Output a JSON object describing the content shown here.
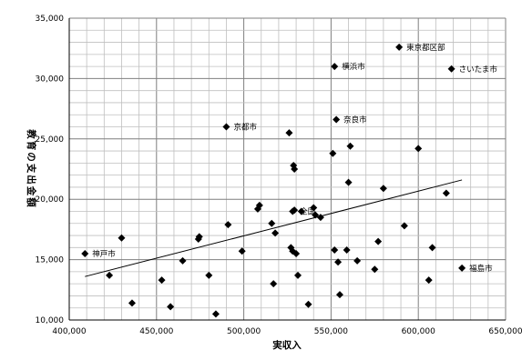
{
  "chart_data": {
    "type": "scatter",
    "title": "",
    "xlabel": "実収入",
    "ylabel": "教育の支出金額",
    "xlim": [
      400000,
      650000
    ],
    "ylim": [
      10000,
      35000
    ],
    "grid": true,
    "legend": "none",
    "x_ticks": [
      "400,000",
      "450,000",
      "500,000",
      "550,000",
      "600,000",
      "650,000"
    ],
    "y_ticks": [
      "10,000",
      "15,000",
      "20,000",
      "25,000",
      "30,000",
      "35,000"
    ],
    "points": [
      {
        "x": 409000,
        "y": 15500,
        "label": "神戸市"
      },
      {
        "x": 423000,
        "y": 13700
      },
      {
        "x": 430000,
        "y": 16800
      },
      {
        "x": 436000,
        "y": 11400
      },
      {
        "x": 453000,
        "y": 13300
      },
      {
        "x": 458000,
        "y": 11100
      },
      {
        "x": 465000,
        "y": 14900
      },
      {
        "x": 474000,
        "y": 16700
      },
      {
        "x": 474500,
        "y": 16900
      },
      {
        "x": 480000,
        "y": 13700
      },
      {
        "x": 484000,
        "y": 10500
      },
      {
        "x": 491000,
        "y": 17900
      },
      {
        "x": 490000,
        "y": 26000,
        "label": "京都市"
      },
      {
        "x": 499000,
        "y": 15700
      },
      {
        "x": 508000,
        "y": 19200
      },
      {
        "x": 509000,
        "y": 19500
      },
      {
        "x": 516000,
        "y": 18000
      },
      {
        "x": 517000,
        "y": 13000
      },
      {
        "x": 518000,
        "y": 17200
      },
      {
        "x": 526000,
        "y": 25500
      },
      {
        "x": 527000,
        "y": 16000
      },
      {
        "x": 528000,
        "y": 15700
      },
      {
        "x": 528500,
        "y": 22800
      },
      {
        "x": 529000,
        "y": 22500
      },
      {
        "x": 528000,
        "y": 19000,
        "label": "全国"
      },
      {
        "x": 529000,
        "y": 19100
      },
      {
        "x": 530000,
        "y": 15500
      },
      {
        "x": 531000,
        "y": 13700
      },
      {
        "x": 533000,
        "y": 19000
      },
      {
        "x": 537000,
        "y": 11300
      },
      {
        "x": 540000,
        "y": 19300
      },
      {
        "x": 541000,
        "y": 18700
      },
      {
        "x": 544000,
        "y": 18500
      },
      {
        "x": 551000,
        "y": 23800
      },
      {
        "x": 552000,
        "y": 15800
      },
      {
        "x": 552000,
        "y": 31000,
        "label": "横浜市"
      },
      {
        "x": 553000,
        "y": 26600,
        "label": "奈良市"
      },
      {
        "x": 554000,
        "y": 14800
      },
      {
        "x": 555000,
        "y": 12100
      },
      {
        "x": 559000,
        "y": 15800
      },
      {
        "x": 560000,
        "y": 21400
      },
      {
        "x": 561000,
        "y": 24400
      },
      {
        "x": 565000,
        "y": 14900
      },
      {
        "x": 575000,
        "y": 14200
      },
      {
        "x": 577000,
        "y": 16500
      },
      {
        "x": 580000,
        "y": 20900
      },
      {
        "x": 589000,
        "y": 32600,
        "label": "東京都区部"
      },
      {
        "x": 592000,
        "y": 17800
      },
      {
        "x": 600000,
        "y": 24200
      },
      {
        "x": 606000,
        "y": 13300
      },
      {
        "x": 608000,
        "y": 16000
      },
      {
        "x": 616000,
        "y": 20500
      },
      {
        "x": 619000,
        "y": 30800,
        "label": "さいたま市"
      },
      {
        "x": 625000,
        "y": 14300,
        "label": "福島市"
      }
    ],
    "trendline": {
      "x": [
        409000,
        625000
      ],
      "y": [
        13600,
        21600
      ]
    }
  }
}
